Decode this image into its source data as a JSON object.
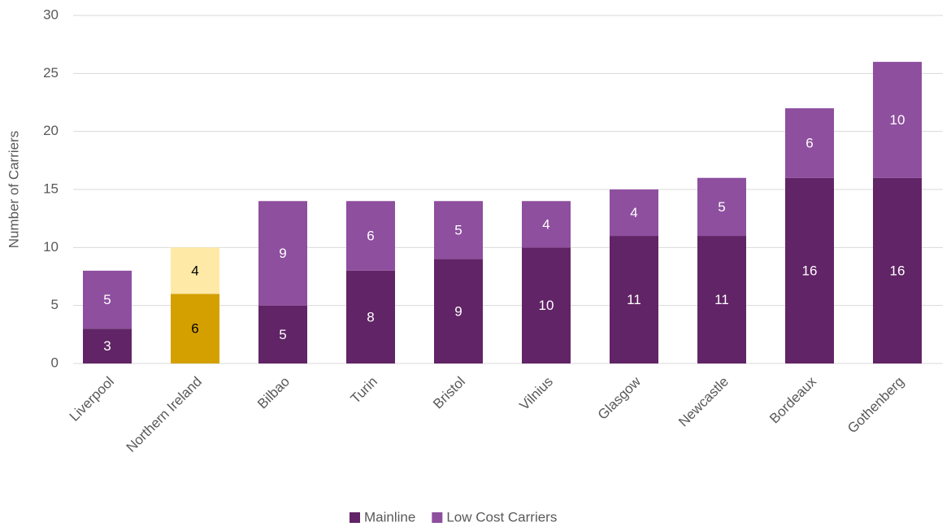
{
  "chart_data": {
    "type": "stacked_bar",
    "y_label": "Number of Carriers",
    "categories": [
      "Liverpool",
      "Northern Ireland",
      "Bilbao",
      "Turin",
      "Bristol",
      "Vilnius",
      "Glasgow",
      "Newcastle",
      "Bordeaux",
      "Gothenberg"
    ],
    "series": [
      {
        "name": "Mainline",
        "color": "#612466",
        "values": [
          3,
          6,
          5,
          8,
          9,
          10,
          11,
          11,
          16,
          16
        ],
        "colors": [
          "#612466",
          "#d4a000",
          "#612466",
          "#612466",
          "#612466",
          "#612466",
          "#612466",
          "#612466",
          "#612466",
          "#612466"
        ]
      },
      {
        "name": "Low Cost Carriers",
        "color": "#8e4f9f",
        "values": [
          5,
          4,
          9,
          6,
          5,
          4,
          4,
          5,
          6,
          10
        ],
        "colors": [
          "#8e4f9f",
          "#ffe9a6",
          "#8e4f9f",
          "#8e4f9f",
          "#8e4f9f",
          "#8e4f9f",
          "#8e4f9f",
          "#8e4f9f",
          "#8e4f9f",
          "#8e4f9f"
        ]
      }
    ],
    "ylim": [
      0,
      30
    ],
    "yticks": [
      0,
      5,
      10,
      15,
      20,
      25,
      30
    ],
    "grid": true,
    "legend": "bottom"
  }
}
